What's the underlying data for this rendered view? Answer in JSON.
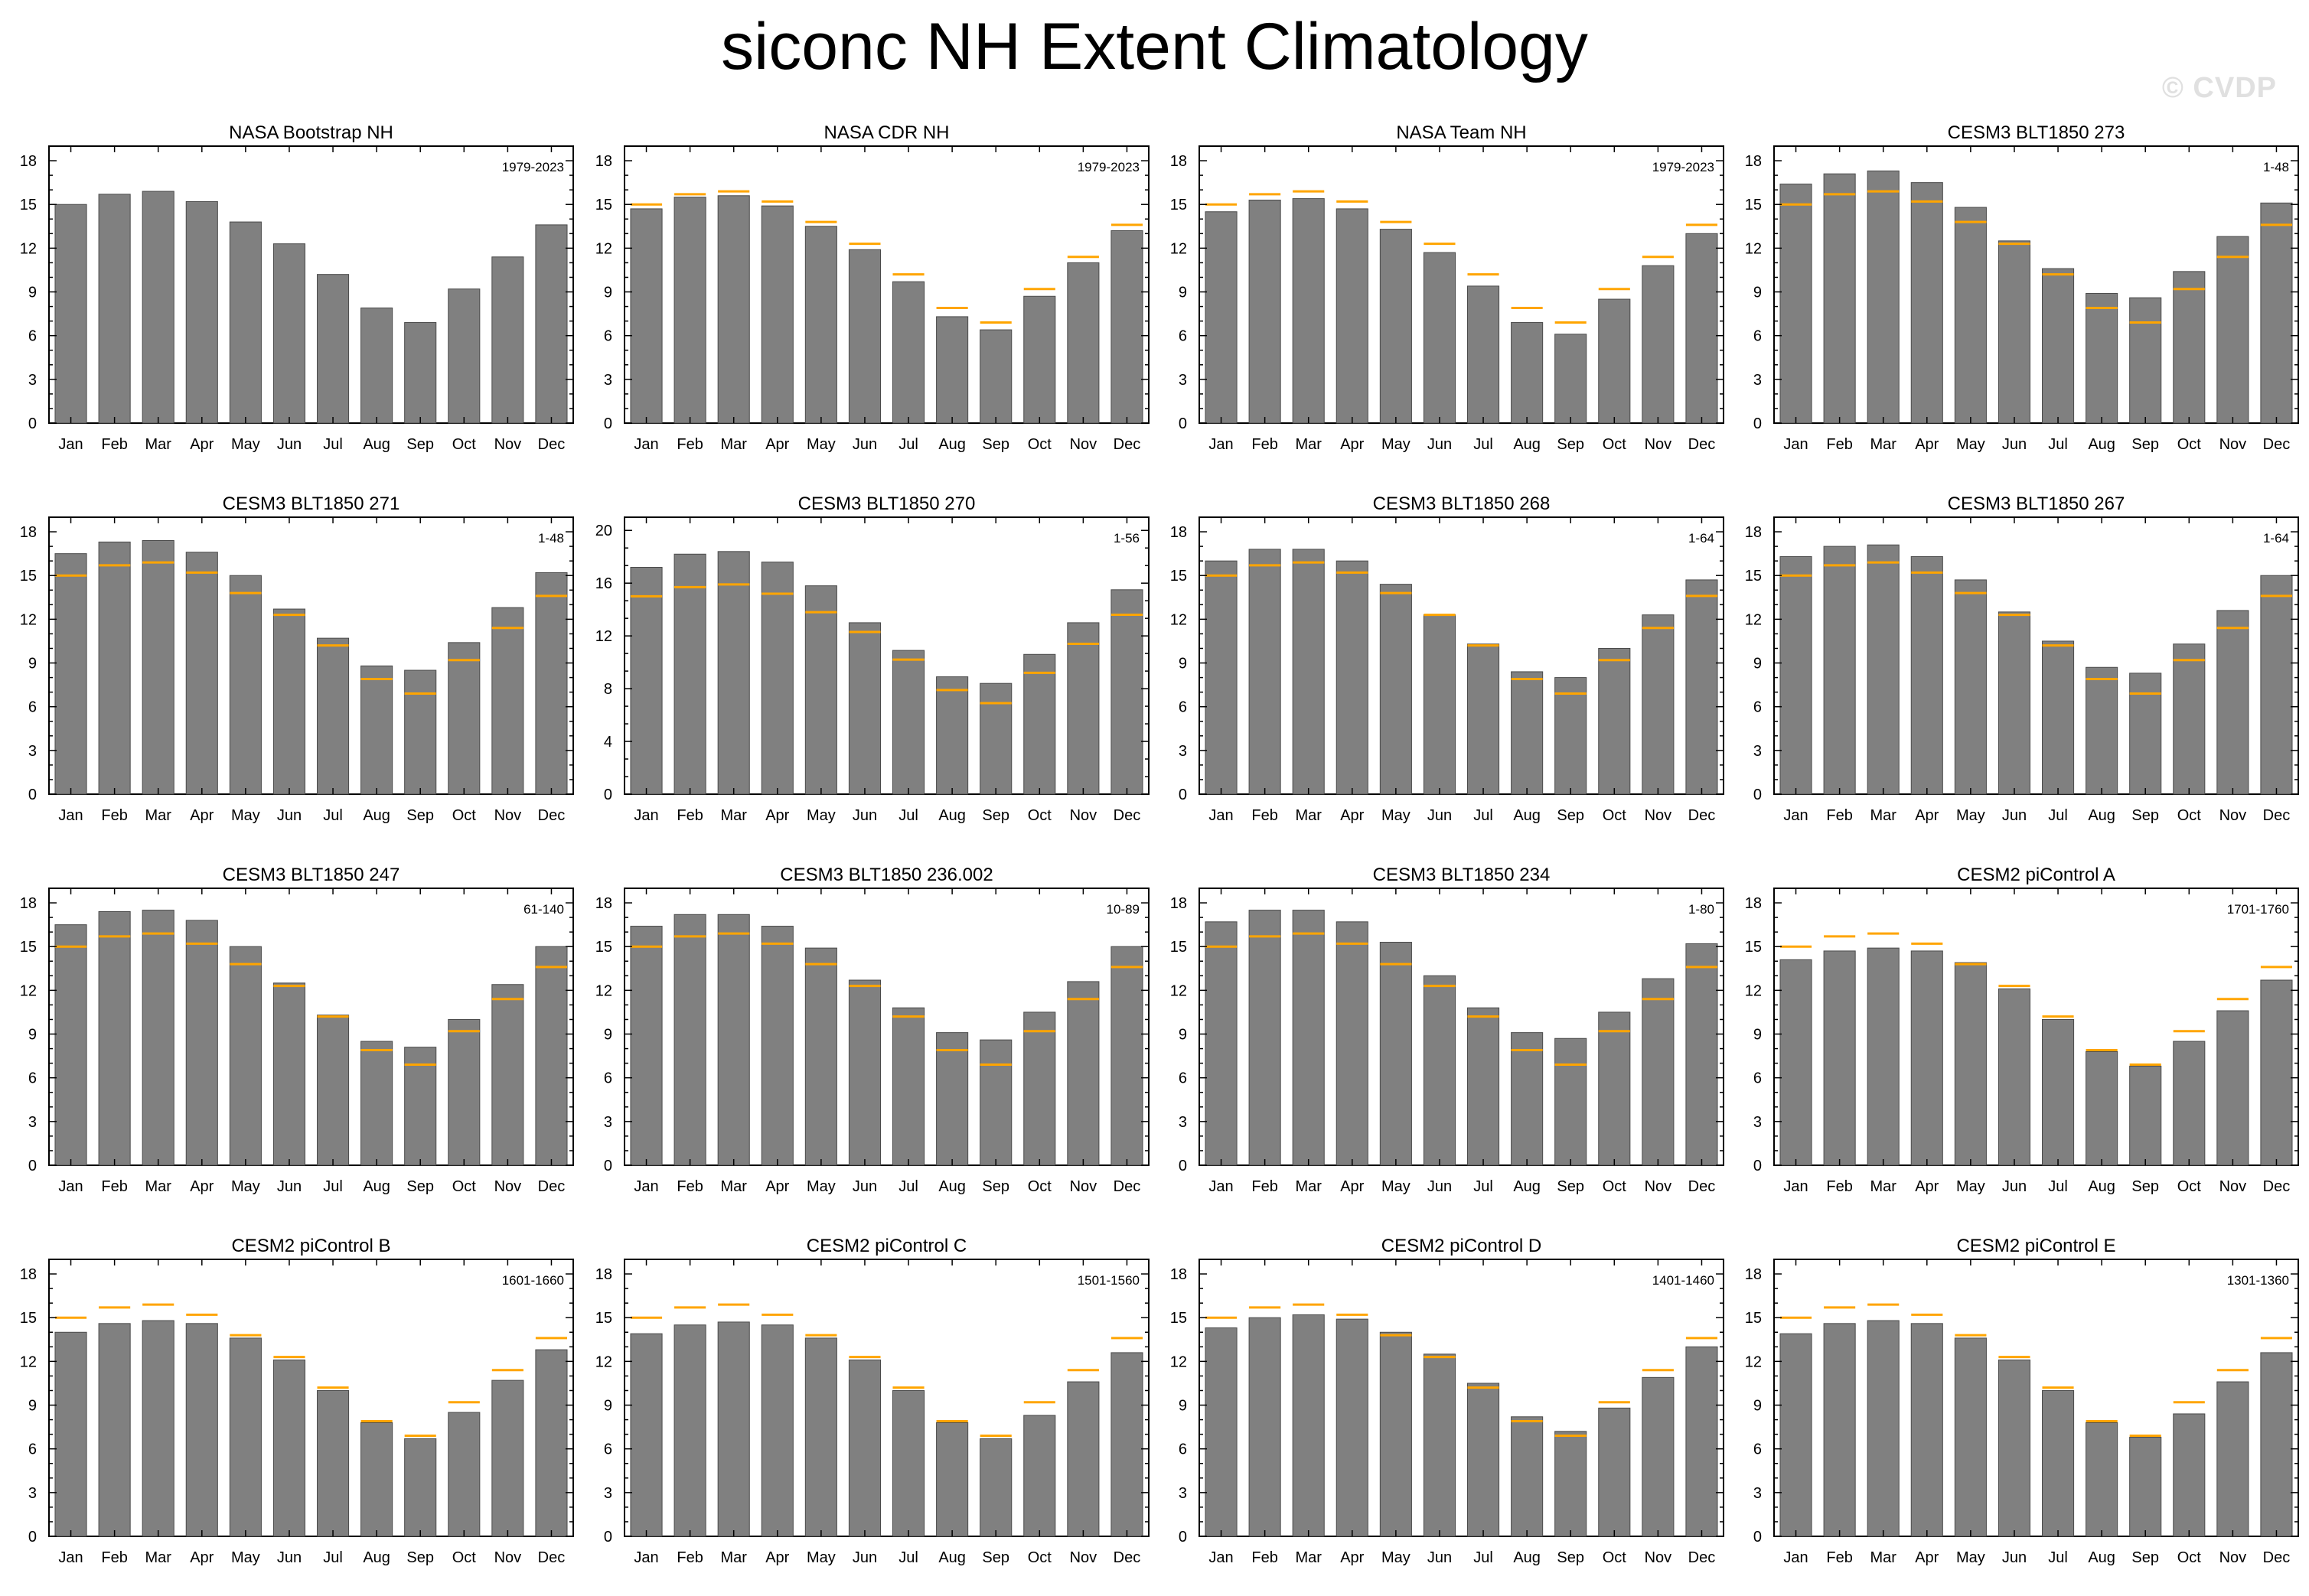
{
  "title": "siconc NH Extent Climatology",
  "watermark": "© CVDP",
  "colors": {
    "bar_fill": "#808080",
    "bar_stroke": "#4a4a4a",
    "reference_line": "#ffa500",
    "obs_title": "#ffa500",
    "axis": "#000000"
  },
  "chart_data": [
    {
      "type": "bar",
      "title": "NASA Bootstrap NH",
      "title_color": "#ffa500",
      "period": "1979-2023",
      "categories": [
        "Jan",
        "Feb",
        "Mar",
        "Apr",
        "May",
        "Jun",
        "Jul",
        "Aug",
        "Sep",
        "Oct",
        "Nov",
        "Dec"
      ],
      "values": [
        15.0,
        15.7,
        15.9,
        15.2,
        13.8,
        12.3,
        10.2,
        7.9,
        6.9,
        9.2,
        11.4,
        13.6
      ],
      "reference": null,
      "ylim": [
        0,
        19
      ],
      "yticks": [
        0,
        3,
        6,
        9,
        12,
        15,
        18
      ]
    },
    {
      "type": "bar",
      "title": "NASA CDR NH",
      "period": "1979-2023",
      "categories": [
        "Jan",
        "Feb",
        "Mar",
        "Apr",
        "May",
        "Jun",
        "Jul",
        "Aug",
        "Sep",
        "Oct",
        "Nov",
        "Dec"
      ],
      "values": [
        14.7,
        15.5,
        15.6,
        14.9,
        13.5,
        11.9,
        9.7,
        7.3,
        6.4,
        8.7,
        11.0,
        13.2
      ],
      "reference": [
        15.0,
        15.7,
        15.9,
        15.2,
        13.8,
        12.3,
        10.2,
        7.9,
        6.9,
        9.2,
        11.4,
        13.6
      ],
      "ylim": [
        0,
        19
      ],
      "yticks": [
        0,
        3,
        6,
        9,
        12,
        15,
        18
      ]
    },
    {
      "type": "bar",
      "title": "NASA Team NH",
      "period": "1979-2023",
      "categories": [
        "Jan",
        "Feb",
        "Mar",
        "Apr",
        "May",
        "Jun",
        "Jul",
        "Aug",
        "Sep",
        "Oct",
        "Nov",
        "Dec"
      ],
      "values": [
        14.5,
        15.3,
        15.4,
        14.7,
        13.3,
        11.7,
        9.4,
        6.9,
        6.1,
        8.5,
        10.8,
        13.0
      ],
      "reference": [
        15.0,
        15.7,
        15.9,
        15.2,
        13.8,
        12.3,
        10.2,
        7.9,
        6.9,
        9.2,
        11.4,
        13.6
      ],
      "ylim": [
        0,
        19
      ],
      "yticks": [
        0,
        3,
        6,
        9,
        12,
        15,
        18
      ]
    },
    {
      "type": "bar",
      "title": "CESM3 BLT1850 273",
      "period": "1-48",
      "categories": [
        "Jan",
        "Feb",
        "Mar",
        "Apr",
        "May",
        "Jun",
        "Jul",
        "Aug",
        "Sep",
        "Oct",
        "Nov",
        "Dec"
      ],
      "values": [
        16.4,
        17.1,
        17.3,
        16.5,
        14.8,
        12.5,
        10.6,
        8.9,
        8.6,
        10.4,
        12.8,
        15.1
      ],
      "reference": [
        15.0,
        15.7,
        15.9,
        15.2,
        13.8,
        12.3,
        10.2,
        7.9,
        6.9,
        9.2,
        11.4,
        13.6
      ],
      "ylim": [
        0,
        19
      ],
      "yticks": [
        0,
        3,
        6,
        9,
        12,
        15,
        18
      ]
    },
    {
      "type": "bar",
      "title": "CESM3 BLT1850 271",
      "period": "1-48",
      "categories": [
        "Jan",
        "Feb",
        "Mar",
        "Apr",
        "May",
        "Jun",
        "Jul",
        "Aug",
        "Sep",
        "Oct",
        "Nov",
        "Dec"
      ],
      "values": [
        16.5,
        17.3,
        17.4,
        16.6,
        15.0,
        12.7,
        10.7,
        8.8,
        8.5,
        10.4,
        12.8,
        15.2
      ],
      "reference": [
        15.0,
        15.7,
        15.9,
        15.2,
        13.8,
        12.3,
        10.2,
        7.9,
        6.9,
        9.2,
        11.4,
        13.6
      ],
      "ylim": [
        0,
        19
      ],
      "yticks": [
        0,
        3,
        6,
        9,
        12,
        15,
        18
      ]
    },
    {
      "type": "bar",
      "title": "CESM3 BLT1850 270",
      "period": "1-56",
      "categories": [
        "Jan",
        "Feb",
        "Mar",
        "Apr",
        "May",
        "Jun",
        "Jul",
        "Aug",
        "Sep",
        "Oct",
        "Nov",
        "Dec"
      ],
      "values": [
        17.2,
        18.2,
        18.4,
        17.6,
        15.8,
        13.0,
        10.9,
        8.9,
        8.4,
        10.6,
        13.0,
        15.5
      ],
      "reference": [
        15.0,
        15.7,
        15.9,
        15.2,
        13.8,
        12.3,
        10.2,
        7.9,
        6.9,
        9.2,
        11.4,
        13.6
      ],
      "ylim": [
        0,
        21
      ],
      "yticks": [
        0,
        4,
        8,
        12,
        16,
        20
      ]
    },
    {
      "type": "bar",
      "title": "CESM3 BLT1850 268",
      "period": "1-64",
      "categories": [
        "Jan",
        "Feb",
        "Mar",
        "Apr",
        "May",
        "Jun",
        "Jul",
        "Aug",
        "Sep",
        "Oct",
        "Nov",
        "Dec"
      ],
      "values": [
        16.0,
        16.8,
        16.8,
        16.0,
        14.4,
        12.3,
        10.3,
        8.4,
        8.0,
        10.0,
        12.3,
        14.7
      ],
      "reference": [
        15.0,
        15.7,
        15.9,
        15.2,
        13.8,
        12.3,
        10.2,
        7.9,
        6.9,
        9.2,
        11.4,
        13.6
      ],
      "ylim": [
        0,
        19
      ],
      "yticks": [
        0,
        3,
        6,
        9,
        12,
        15,
        18
      ]
    },
    {
      "type": "bar",
      "title": "CESM3 BLT1850 267",
      "period": "1-64",
      "categories": [
        "Jan",
        "Feb",
        "Mar",
        "Apr",
        "May",
        "Jun",
        "Jul",
        "Aug",
        "Sep",
        "Oct",
        "Nov",
        "Dec"
      ],
      "values": [
        16.3,
        17.0,
        17.1,
        16.3,
        14.7,
        12.5,
        10.5,
        8.7,
        8.3,
        10.3,
        12.6,
        15.0
      ],
      "reference": [
        15.0,
        15.7,
        15.9,
        15.2,
        13.8,
        12.3,
        10.2,
        7.9,
        6.9,
        9.2,
        11.4,
        13.6
      ],
      "ylim": [
        0,
        19
      ],
      "yticks": [
        0,
        3,
        6,
        9,
        12,
        15,
        18
      ]
    },
    {
      "type": "bar",
      "title": "CESM3 BLT1850 247",
      "period": "61-140",
      "categories": [
        "Jan",
        "Feb",
        "Mar",
        "Apr",
        "May",
        "Jun",
        "Jul",
        "Aug",
        "Sep",
        "Oct",
        "Nov",
        "Dec"
      ],
      "values": [
        16.5,
        17.4,
        17.5,
        16.8,
        15.0,
        12.5,
        10.3,
        8.5,
        8.1,
        10.0,
        12.4,
        15.0
      ],
      "reference": [
        15.0,
        15.7,
        15.9,
        15.2,
        13.8,
        12.3,
        10.2,
        7.9,
        6.9,
        9.2,
        11.4,
        13.6
      ],
      "ylim": [
        0,
        19
      ],
      "yticks": [
        0,
        3,
        6,
        9,
        12,
        15,
        18
      ]
    },
    {
      "type": "bar",
      "title": "CESM3 BLT1850 236.002",
      "period": "10-89",
      "categories": [
        "Jan",
        "Feb",
        "Mar",
        "Apr",
        "May",
        "Jun",
        "Jul",
        "Aug",
        "Sep",
        "Oct",
        "Nov",
        "Dec"
      ],
      "values": [
        16.4,
        17.2,
        17.2,
        16.4,
        14.9,
        12.7,
        10.8,
        9.1,
        8.6,
        10.5,
        12.6,
        15.0
      ],
      "reference": [
        15.0,
        15.7,
        15.9,
        15.2,
        13.8,
        12.3,
        10.2,
        7.9,
        6.9,
        9.2,
        11.4,
        13.6
      ],
      "ylim": [
        0,
        19
      ],
      "yticks": [
        0,
        3,
        6,
        9,
        12,
        15,
        18
      ]
    },
    {
      "type": "bar",
      "title": "CESM3 BLT1850 234",
      "period": "1-80",
      "categories": [
        "Jan",
        "Feb",
        "Mar",
        "Apr",
        "May",
        "Jun",
        "Jul",
        "Aug",
        "Sep",
        "Oct",
        "Nov",
        "Dec"
      ],
      "values": [
        16.7,
        17.5,
        17.5,
        16.7,
        15.3,
        13.0,
        10.8,
        9.1,
        8.7,
        10.5,
        12.8,
        15.2
      ],
      "reference": [
        15.0,
        15.7,
        15.9,
        15.2,
        13.8,
        12.3,
        10.2,
        7.9,
        6.9,
        9.2,
        11.4,
        13.6
      ],
      "ylim": [
        0,
        19
      ],
      "yticks": [
        0,
        3,
        6,
        9,
        12,
        15,
        18
      ]
    },
    {
      "type": "bar",
      "title": "CESM2 piControl A",
      "period": "1701-1760",
      "categories": [
        "Jan",
        "Feb",
        "Mar",
        "Apr",
        "May",
        "Jun",
        "Jul",
        "Aug",
        "Sep",
        "Oct",
        "Nov",
        "Dec"
      ],
      "values": [
        14.1,
        14.7,
        14.9,
        14.7,
        13.9,
        12.1,
        10.0,
        7.8,
        6.8,
        8.5,
        10.6,
        12.7
      ],
      "reference": [
        15.0,
        15.7,
        15.9,
        15.2,
        13.8,
        12.3,
        10.2,
        7.9,
        6.9,
        9.2,
        11.4,
        13.6
      ],
      "ylim": [
        0,
        19
      ],
      "yticks": [
        0,
        3,
        6,
        9,
        12,
        15,
        18
      ]
    },
    {
      "type": "bar",
      "title": "CESM2 piControl B",
      "period": "1601-1660",
      "categories": [
        "Jan",
        "Feb",
        "Mar",
        "Apr",
        "May",
        "Jun",
        "Jul",
        "Aug",
        "Sep",
        "Oct",
        "Nov",
        "Dec"
      ],
      "values": [
        14.0,
        14.6,
        14.8,
        14.6,
        13.6,
        12.1,
        10.0,
        7.8,
        6.7,
        8.5,
        10.7,
        12.8
      ],
      "reference": [
        15.0,
        15.7,
        15.9,
        15.2,
        13.8,
        12.3,
        10.2,
        7.9,
        6.9,
        9.2,
        11.4,
        13.6
      ],
      "ylim": [
        0,
        19
      ],
      "yticks": [
        0,
        3,
        6,
        9,
        12,
        15,
        18
      ]
    },
    {
      "type": "bar",
      "title": "CESM2 piControl C",
      "period": "1501-1560",
      "categories": [
        "Jan",
        "Feb",
        "Mar",
        "Apr",
        "May",
        "Jun",
        "Jul",
        "Aug",
        "Sep",
        "Oct",
        "Nov",
        "Dec"
      ],
      "values": [
        13.9,
        14.5,
        14.7,
        14.5,
        13.6,
        12.1,
        10.0,
        7.8,
        6.7,
        8.3,
        10.6,
        12.6
      ],
      "reference": [
        15.0,
        15.7,
        15.9,
        15.2,
        13.8,
        12.3,
        10.2,
        7.9,
        6.9,
        9.2,
        11.4,
        13.6
      ],
      "ylim": [
        0,
        19
      ],
      "yticks": [
        0,
        3,
        6,
        9,
        12,
        15,
        18
      ]
    },
    {
      "type": "bar",
      "title": "CESM2 piControl D",
      "period": "1401-1460",
      "categories": [
        "Jan",
        "Feb",
        "Mar",
        "Apr",
        "May",
        "Jun",
        "Jul",
        "Aug",
        "Sep",
        "Oct",
        "Nov",
        "Dec"
      ],
      "values": [
        14.3,
        15.0,
        15.2,
        14.9,
        14.0,
        12.5,
        10.5,
        8.2,
        7.2,
        8.8,
        10.9,
        13.0
      ],
      "reference": [
        15.0,
        15.7,
        15.9,
        15.2,
        13.8,
        12.3,
        10.2,
        7.9,
        6.9,
        9.2,
        11.4,
        13.6
      ],
      "ylim": [
        0,
        19
      ],
      "yticks": [
        0,
        3,
        6,
        9,
        12,
        15,
        18
      ]
    },
    {
      "type": "bar",
      "title": "CESM2 piControl E",
      "period": "1301-1360",
      "categories": [
        "Jan",
        "Feb",
        "Mar",
        "Apr",
        "May",
        "Jun",
        "Jul",
        "Aug",
        "Sep",
        "Oct",
        "Nov",
        "Dec"
      ],
      "values": [
        13.9,
        14.6,
        14.8,
        14.6,
        13.6,
        12.1,
        10.0,
        7.8,
        6.8,
        8.4,
        10.6,
        12.6
      ],
      "reference": [
        15.0,
        15.7,
        15.9,
        15.2,
        13.8,
        12.3,
        10.2,
        7.9,
        6.9,
        9.2,
        11.4,
        13.6
      ],
      "ylim": [
        0,
        19
      ],
      "yticks": [
        0,
        3,
        6,
        9,
        12,
        15,
        18
      ]
    }
  ]
}
